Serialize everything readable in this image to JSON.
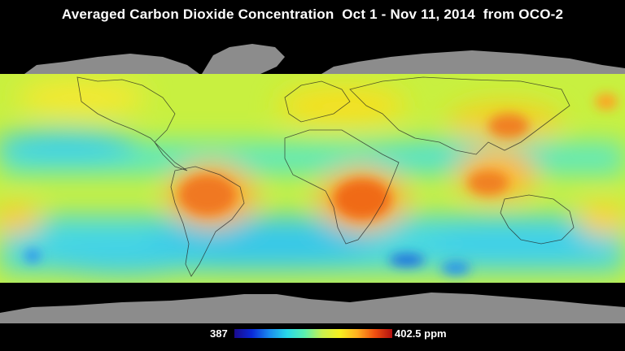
{
  "title": "Averaged Carbon Dioxide Concentration  Oct 1 - Nov 11, 2014  from OCO-2",
  "colorbar": {
    "min_label": "387",
    "max_label": "402.5 ppm",
    "min_value": 387,
    "max_value": 402.5,
    "unit": "ppm",
    "colors": [
      "#1a0a8c",
      "#0a2ad8",
      "#1a8cf0",
      "#28d8e8",
      "#5af0b0",
      "#c8f050",
      "#f5f020",
      "#ffb020",
      "#f05010",
      "#b01010"
    ]
  },
  "map": {
    "projection": "equirectangular",
    "data_band_latitudes": [
      -60,
      70
    ],
    "land_outside_data_color": "#8c8c8c",
    "ocean_outside_data_color": "#000000"
  }
}
